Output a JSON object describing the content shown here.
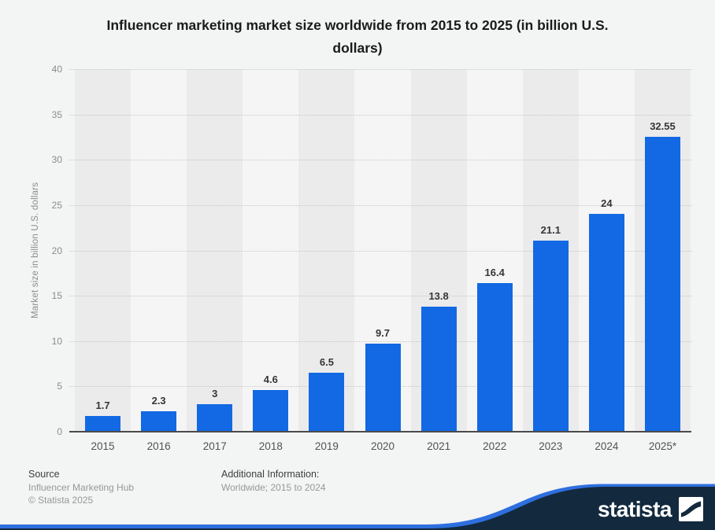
{
  "chart_data": {
    "type": "bar",
    "title": "Influencer marketing market size worldwide from 2015 to 2025 (in billion U.S. dollars)",
    "title_lines": [
      "Influencer marketing market size worldwide from 2015 to 2025 (in billion U.S.",
      "dollars)"
    ],
    "xlabel": "",
    "ylabel": "Market size in billion U.S. dollars",
    "categories": [
      "2015",
      "2016",
      "2017",
      "2018",
      "2019",
      "2020",
      "2021",
      "2022",
      "2023",
      "2024",
      "2025*"
    ],
    "values": [
      1.7,
      2.3,
      3,
      4.6,
      6.5,
      9.7,
      13.8,
      16.4,
      21.1,
      24,
      32.55
    ],
    "value_labels": [
      "1.7",
      "2.3",
      "3",
      "4.6",
      "6.5",
      "9.7",
      "13.8",
      "16.4",
      "21.1",
      "24",
      "32.55"
    ],
    "ylim": [
      0,
      40
    ],
    "yticks": [
      0,
      5,
      10,
      15,
      20,
      25,
      30,
      35,
      40
    ],
    "grid": "horizontal-dotted",
    "legend": "none",
    "bar_color": "#1269e3"
  },
  "footer": {
    "source_label": "Source",
    "source_name": "Influencer Marketing Hub",
    "copyright": "© Statista 2025",
    "additional_info_label": "Additional Information:",
    "additional_info_value": "Worldwide; 2015 to 2024",
    "brand": "statista"
  },
  "colors": {
    "page_background": "#f3f4f4",
    "stripe_dark": "#ebebec",
    "stripe_light": "#f5f5f6",
    "bar": "#1269e3",
    "axis_line": "#4b4b4b",
    "swoosh_blue": "#2e6fdf",
    "brand_navy": "#13293d"
  }
}
